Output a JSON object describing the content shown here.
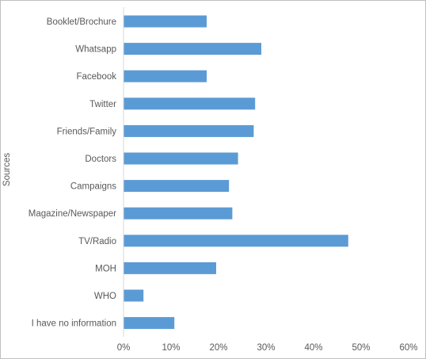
{
  "chart_data": {
    "type": "bar",
    "orientation": "horizontal",
    "ylabel": "Sources",
    "xlabel": "",
    "title": "",
    "categories": [
      "Booklet/Brochure",
      "Whatsapp",
      "Facebook",
      "Twitter",
      "Friends/Family",
      "Doctors",
      "Campaigns",
      "Magazine/Newspaper",
      "TV/Radio",
      "MOH",
      "WHO",
      "I have no information"
    ],
    "values": [
      17.5,
      29,
      17.5,
      27.7,
      27.4,
      24.1,
      22.2,
      22.9,
      47.3,
      19.5,
      4.2,
      10.7
    ],
    "value_unit": "%",
    "xlim": [
      0,
      60
    ],
    "x_ticks": [
      "0%",
      "10%",
      "20%",
      "30%",
      "40%",
      "50%",
      "60%"
    ],
    "grid": false,
    "legend": "none",
    "bar_color": "#5b9bd5",
    "axis_color": "#d9d9d9"
  }
}
